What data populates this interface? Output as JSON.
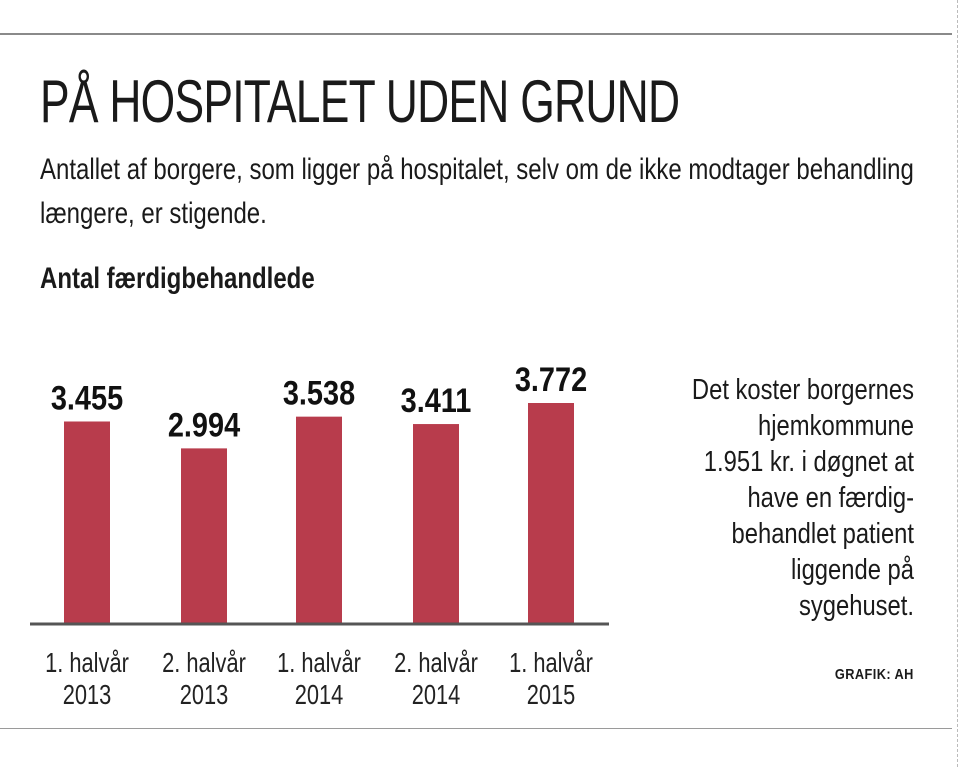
{
  "header": {
    "title": "PÅ HOSPITALET UDEN GRUND",
    "subtitle": "Antallet af borgere, som ligger på hospitalet, selv om de ikke modtager behandling længere, er stigende."
  },
  "chart_data": {
    "type": "bar",
    "title": "Antal færdigbehandlede",
    "xlabel": "",
    "ylabel": "",
    "categories": [
      [
        "1. halvår",
        "2013"
      ],
      [
        "2. halvår",
        "2013"
      ],
      [
        "1. halvår",
        "2014"
      ],
      [
        "2. halvår",
        "2014"
      ],
      [
        "1. halvår",
        "2015"
      ]
    ],
    "values": [
      3455,
      2994,
      3538,
      3411,
      3772
    ],
    "value_labels": [
      "3.455",
      "2.994",
      "3.538",
      "3.411",
      "3.772"
    ],
    "ylim": [
      0,
      4000
    ],
    "grid": false,
    "bar_color": "#b83c4c",
    "axis_color": "#555555"
  },
  "note": "Det koster borgernes hjemkommune 1.951 kr. i døgnet at have en færdig-behandlet patient liggende på sygehuset.",
  "note_lines": [
    "Det koster borgernes",
    "hjemkommune",
    "1.951 kr. i døgnet at",
    "have en færdig-",
    "behandlet patient",
    "liggende på",
    "sygehuset."
  ],
  "credit": "GRAFIK: AH"
}
